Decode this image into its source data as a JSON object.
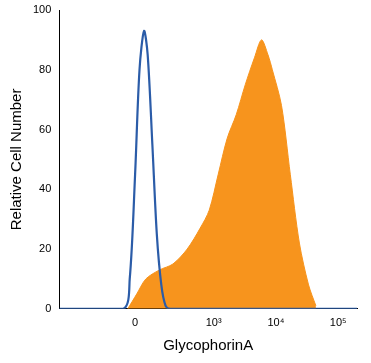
{
  "chart_data": {
    "type": "area",
    "x_label": "GlycophorinA",
    "y_label": "Relative Cell Number",
    "xlim": [
      -900,
      200000
    ],
    "xticks": [
      0,
      {
        "value": 1000,
        "label": "10³"
      },
      {
        "value": 10000,
        "label": "10⁴"
      },
      {
        "value": 100000,
        "label": "10⁵"
      }
    ],
    "ylim": [
      0,
      100
    ],
    "yticks": [
      0,
      20,
      40,
      60,
      80,
      100
    ],
    "grid": false,
    "series": [
      {
        "type": "area",
        "color": "#f7941d",
        "x": [
          -30,
          7,
          45,
          113,
          209,
          369,
          604,
          847,
          1183,
          1647,
          2310,
          3220,
          4520,
          5870,
          7460,
          8760,
          12300,
          17000,
          23800,
          33400,
          43800
        ],
        "values": [
          0,
          5,
          10,
          13,
          15,
          20,
          27,
          33,
          45,
          57,
          65,
          75,
          84,
          90,
          85,
          80,
          68,
          45,
          22,
          8,
          1
        ]
      },
      {
        "type": "line",
        "color": "#2b5ca8",
        "x": [
          -900,
          -49,
          -22,
          0,
          18,
          37,
          53,
          75,
          98,
          124,
          152,
          186,
          200000
        ],
        "values": [
          0,
          0,
          10,
          45,
          80,
          93,
          85,
          55,
          25,
          8,
          1,
          0,
          0
        ]
      }
    ]
  }
}
